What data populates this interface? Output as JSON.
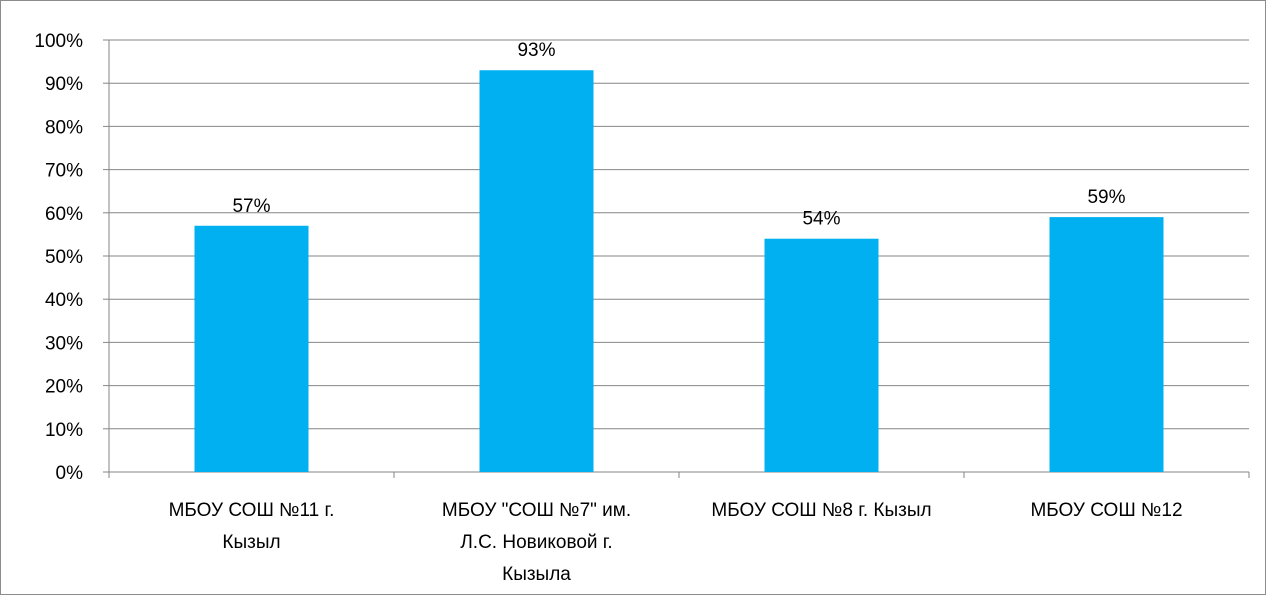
{
  "chart_data": {
    "type": "bar",
    "categories": [
      [
        "МБОУ СОШ №11 г.",
        "Кызыл"
      ],
      [
        "МБОУ \"СОШ №7\" им.",
        "Л.С. Новиковой г.",
        "Кызыла"
      ],
      [
        "МБОУ СОШ №8 г. Кызыл"
      ],
      [
        "МБОУ СОШ №12"
      ]
    ],
    "values": [
      57,
      93,
      54,
      59
    ],
    "data_labels": [
      "57%",
      "93%",
      "54%",
      "59%"
    ],
    "ylim": [
      0,
      100
    ],
    "y_ticks": [
      "0%",
      "10%",
      "20%",
      "30%",
      "40%",
      "50%",
      "60%",
      "70%",
      "80%",
      "90%",
      "100%"
    ],
    "title": "",
    "xlabel": "",
    "ylabel": "",
    "grid": true,
    "legend": "none",
    "bar_color": "#00B0F0",
    "grid_color": "#868686"
  }
}
